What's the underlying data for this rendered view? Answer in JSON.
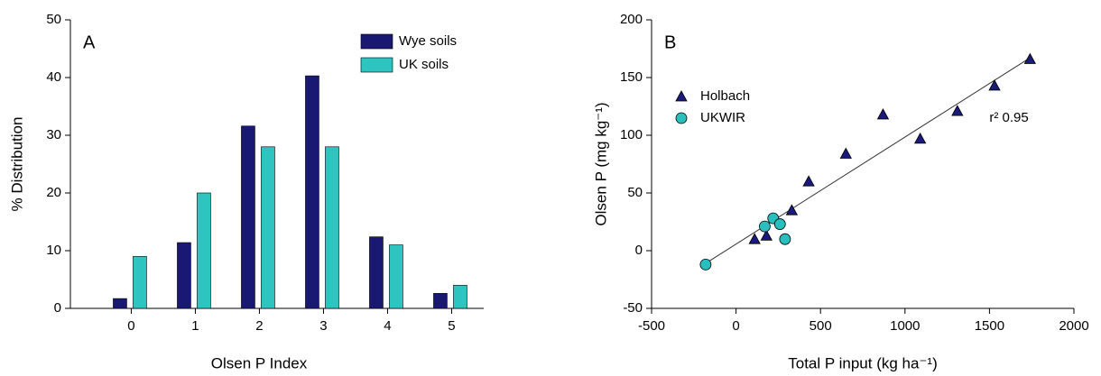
{
  "chart_data": [
    {
      "type": "bar",
      "annotation": "A",
      "xlabel": "Olsen P Index",
      "ylabel": "% Distribution",
      "categories": [
        "0",
        "1",
        "2",
        "3",
        "4",
        "5"
      ],
      "series": [
        {
          "name": "Wye soils",
          "color": "#191973",
          "values": [
            1.7,
            11.4,
            31.6,
            40.3,
            12.4,
            2.6
          ]
        },
        {
          "name": "UK soils",
          "color": "#2ec4c0",
          "values": [
            9,
            20,
            28,
            28,
            11,
            4
          ]
        }
      ],
      "ylim": [
        0,
        50
      ],
      "yticks": [
        0,
        10,
        20,
        30,
        40,
        50
      ],
      "legend": "upper right"
    },
    {
      "type": "scatter",
      "annotation": "B",
      "xlabel": "Total P input (kg ha⁻¹)",
      "ylabel": "Olsen P (mg kg⁻¹)",
      "fit_label": "r² 0.95",
      "series": [
        {
          "name": "Holbach",
          "color": "#1a1a7a",
          "marker": "triangle",
          "x": [
            110,
            180,
            330,
            430,
            650,
            870,
            1090,
            1310,
            1530,
            1740
          ],
          "y": [
            10,
            13,
            35,
            60,
            84,
            118,
            97,
            121,
            143,
            166
          ]
        },
        {
          "name": "UKWIR",
          "color": "#2abfbf",
          "marker": "circle",
          "x": [
            -180,
            170,
            220,
            260,
            290
          ],
          "y": [
            -12,
            21,
            28,
            23,
            10
          ]
        }
      ],
      "fit_line": {
        "x": [
          -180,
          1750
        ],
        "y": [
          -11,
          168
        ]
      },
      "xlim": [
        -500,
        2000
      ],
      "xticks": [
        -500,
        0,
        500,
        1000,
        1500,
        2000
      ],
      "ylim": [
        -50,
        200
      ],
      "yticks": [
        -50,
        0,
        50,
        100,
        150,
        200
      ],
      "legend": "upper left"
    }
  ]
}
